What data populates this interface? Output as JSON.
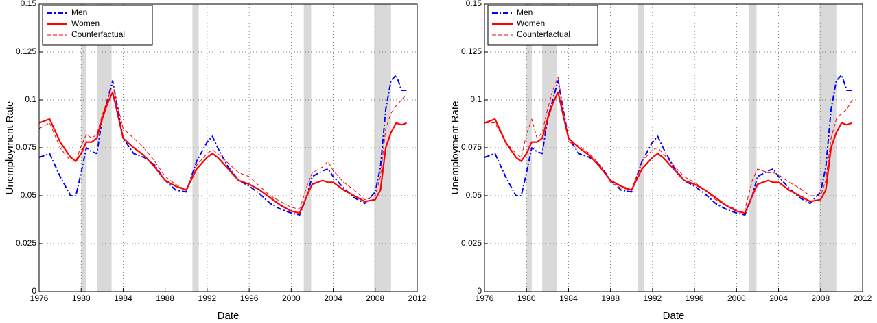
{
  "chart_data": [
    {
      "type": "line",
      "xlabel": "Date",
      "ylabel": "Unemployment Rate",
      "xlim": [
        1976,
        2012
      ],
      "xticks": [
        1976,
        1980,
        1984,
        1988,
        1992,
        1996,
        2000,
        2004,
        2008,
        2012
      ],
      "ylim": [
        0,
        0.15
      ],
      "yticks": [
        0,
        0.025,
        0.05,
        0.075,
        0.1,
        0.125,
        0.15
      ],
      "grid": true,
      "legend": "upper left",
      "shaded_periods": [
        [
          1980,
          1980.5
        ],
        [
          1981.5,
          1982.9
        ],
        [
          1990.6,
          1991.2
        ],
        [
          2001.2,
          2001.9
        ],
        [
          2007.9,
          2009.5
        ]
      ],
      "x": [
        1976,
        1977,
        1978,
        1979,
        1979.5,
        1980,
        1980.5,
        1981,
        1981.5,
        1982,
        1982.5,
        1983,
        1984,
        1985,
        1986,
        1987,
        1988,
        1989,
        1990,
        1991,
        1992,
        1992.5,
        1993,
        1994,
        1995,
        1996,
        1997,
        1998,
        1999,
        2000,
        2000.8,
        2001.5,
        2002,
        2003,
        2003.5,
        2004,
        2005,
        2006,
        2007,
        2008,
        2008.5,
        2009,
        2009.5,
        2010,
        2010.5,
        2011
      ],
      "series": [
        {
          "name": "Men",
          "color": "#0000ff",
          "linestyle": "dashdot",
          "values": [
            0.07,
            0.072,
            0.06,
            0.05,
            0.05,
            0.062,
            0.075,
            0.073,
            0.072,
            0.09,
            0.1,
            0.11,
            0.08,
            0.072,
            0.07,
            0.066,
            0.058,
            0.053,
            0.052,
            0.068,
            0.078,
            0.081,
            0.075,
            0.065,
            0.058,
            0.055,
            0.051,
            0.046,
            0.043,
            0.041,
            0.04,
            0.05,
            0.06,
            0.063,
            0.064,
            0.06,
            0.054,
            0.049,
            0.046,
            0.052,
            0.065,
            0.095,
            0.11,
            0.113,
            0.105,
            0.105
          ]
        },
        {
          "name": "Women",
          "color": "#ff0000",
          "linestyle": "solid",
          "values": [
            0.088,
            0.09,
            0.078,
            0.07,
            0.068,
            0.072,
            0.078,
            0.078,
            0.08,
            0.09,
            0.098,
            0.104,
            0.08,
            0.075,
            0.071,
            0.065,
            0.058,
            0.055,
            0.053,
            0.064,
            0.07,
            0.072,
            0.07,
            0.064,
            0.058,
            0.056,
            0.053,
            0.049,
            0.045,
            0.042,
            0.041,
            0.05,
            0.056,
            0.058,
            0.057,
            0.057,
            0.053,
            0.05,
            0.047,
            0.048,
            0.053,
            0.075,
            0.083,
            0.088,
            0.087,
            0.088
          ]
        },
        {
          "name": "Counterfactual",
          "color": "#ff0000",
          "linestyle": "dashed",
          "values": [
            0.085,
            0.088,
            0.075,
            0.068,
            0.068,
            0.076,
            0.082,
            0.08,
            0.082,
            0.092,
            0.1,
            0.108,
            0.085,
            0.08,
            0.075,
            0.068,
            0.06,
            0.056,
            0.053,
            0.066,
            0.072,
            0.074,
            0.072,
            0.067,
            0.062,
            0.06,
            0.055,
            0.05,
            0.047,
            0.044,
            0.043,
            0.055,
            0.062,
            0.065,
            0.068,
            0.063,
            0.057,
            0.053,
            0.048,
            0.05,
            0.06,
            0.085,
            0.093,
            0.097,
            0.1,
            0.103
          ]
        }
      ]
    },
    {
      "type": "line",
      "xlabel": "Date",
      "ylabel": "Unemployment Rate",
      "xlim": [
        1976,
        2012
      ],
      "xticks": [
        1976,
        1980,
        1984,
        1988,
        1992,
        1996,
        2000,
        2004,
        2008,
        2012
      ],
      "ylim": [
        0,
        0.15
      ],
      "yticks": [
        0,
        0.025,
        0.05,
        0.075,
        0.1,
        0.125,
        0.15
      ],
      "grid": true,
      "legend": "upper left",
      "shaded_periods": [
        [
          1980,
          1980.5
        ],
        [
          1981.5,
          1982.9
        ],
        [
          1990.6,
          1991.2
        ],
        [
          2001.2,
          2001.9
        ],
        [
          2007.9,
          2009.5
        ]
      ],
      "x": [
        1976,
        1977,
        1978,
        1979,
        1979.5,
        1980,
        1980.5,
        1981,
        1981.5,
        1982,
        1982.5,
        1983,
        1984,
        1985,
        1986,
        1987,
        1988,
        1989,
        1990,
        1991,
        1992,
        1992.5,
        1993,
        1994,
        1995,
        1996,
        1997,
        1998,
        1999,
        2000,
        2000.8,
        2001.5,
        2002,
        2003,
        2003.5,
        2004,
        2005,
        2006,
        2007,
        2008,
        2008.5,
        2009,
        2009.5,
        2010,
        2010.5,
        2011
      ],
      "series": [
        {
          "name": "Men",
          "color": "#0000ff",
          "linestyle": "dashdot",
          "values": [
            0.07,
            0.072,
            0.06,
            0.05,
            0.05,
            0.062,
            0.075,
            0.073,
            0.072,
            0.09,
            0.1,
            0.11,
            0.08,
            0.072,
            0.07,
            0.066,
            0.058,
            0.053,
            0.052,
            0.068,
            0.078,
            0.081,
            0.075,
            0.065,
            0.058,
            0.055,
            0.051,
            0.046,
            0.043,
            0.041,
            0.04,
            0.05,
            0.06,
            0.063,
            0.064,
            0.06,
            0.054,
            0.049,
            0.046,
            0.052,
            0.065,
            0.095,
            0.11,
            0.113,
            0.105,
            0.105
          ]
        },
        {
          "name": "Women",
          "color": "#ff0000",
          "linestyle": "solid",
          "values": [
            0.088,
            0.09,
            0.078,
            0.07,
            0.068,
            0.072,
            0.078,
            0.078,
            0.08,
            0.09,
            0.098,
            0.104,
            0.08,
            0.075,
            0.071,
            0.065,
            0.058,
            0.055,
            0.053,
            0.064,
            0.07,
            0.072,
            0.07,
            0.064,
            0.058,
            0.056,
            0.053,
            0.049,
            0.045,
            0.042,
            0.041,
            0.05,
            0.056,
            0.058,
            0.057,
            0.057,
            0.053,
            0.05,
            0.047,
            0.048,
            0.053,
            0.075,
            0.083,
            0.088,
            0.087,
            0.088
          ]
        },
        {
          "name": "Counterfactual",
          "color": "#ff0000",
          "linestyle": "dashed",
          "values": [
            0.088,
            0.088,
            0.078,
            0.072,
            0.07,
            0.082,
            0.09,
            0.08,
            0.083,
            0.095,
            0.105,
            0.112,
            0.078,
            0.076,
            0.072,
            0.066,
            0.057,
            0.054,
            0.053,
            0.068,
            0.074,
            0.075,
            0.072,
            0.066,
            0.06,
            0.057,
            0.053,
            0.048,
            0.045,
            0.043,
            0.043,
            0.058,
            0.064,
            0.062,
            0.062,
            0.061,
            0.057,
            0.054,
            0.05,
            0.05,
            0.058,
            0.08,
            0.09,
            0.093,
            0.095,
            0.1
          ]
        }
      ]
    }
  ]
}
